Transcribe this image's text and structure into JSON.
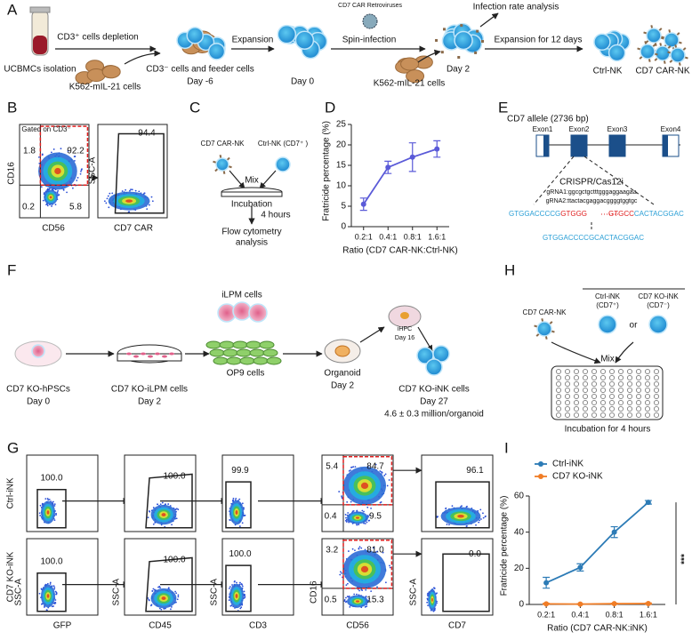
{
  "panel_labels": [
    "A",
    "B",
    "C",
    "D",
    "E",
    "F",
    "G",
    "H",
    "I"
  ],
  "A": {
    "texts": [
      "UCBMCs isolation",
      "CD3⁺ cells depletion",
      "K562-mIL-21 cells",
      "CD3⁻ cells and feeder cells",
      "Day -6",
      "Expansion",
      "Day 0",
      "CD7 CAR Retroviruses",
      "Spin-infection",
      "Infection rate analysis",
      "Day 2",
      "K562-mIL-21 cells",
      "Expansion for 12 days",
      "Ctrl-NK",
      "CD7 CAR-NK"
    ]
  },
  "B": {
    "texts": [
      "Gated on CD3⁻",
      "1.8",
      "92.2",
      "0.2",
      "5.8",
      "94.4",
      "CD16",
      "CD56",
      "SSC-A",
      "CD7 CAR"
    ]
  },
  "C": {
    "texts": [
      "CD7 CAR-NK",
      "Ctrl-NK (CD7⁺ )",
      "Mix",
      "Incubation",
      "4 hours",
      "Flow cytometry",
      "analysis"
    ]
  },
  "E": {
    "texts": [
      "CD7 allele (2736 bp)",
      "Exon1",
      "Exon2",
      "Exon3",
      "Exon4",
      "CRISPR/Cas12i",
      "gRNA1:ggcgctgctttgggaggaagaa",
      "gRNA2:ttactacgaggacggggtggtgc",
      "GTGGACCCCGCACTACGGAC"
    ],
    "sequence": [
      "GTGGACCCCG",
      "GTGGG",
      "GTGCC",
      "CACTACGGAC"
    ]
  },
  "F": {
    "texts": [
      "CD7 KO-hPSCs",
      "Day 0",
      "CD7 KO-iLPM cells",
      "Day 2",
      "iLPM cells",
      "OP9 cells",
      "Organoid",
      "Day 2",
      "iHPC",
      "Day 16",
      "CD7 KO-iNK cells",
      "Day 27",
      "4.6 ± 0.3 million/organoid"
    ]
  },
  "G": {
    "rows": [
      {
        "label": "Ctrl-iNK",
        "gates": [
          [
            "100.0"
          ],
          [
            "100.0"
          ],
          [
            "99.9"
          ],
          [
            "5.4",
            "84.7",
            "0.4",
            "9.5"
          ],
          [
            "96.1"
          ]
        ]
      },
      {
        "label": "CD7 KO-iNK",
        "gates": [
          [
            "100.0"
          ],
          [
            "100.0"
          ],
          [
            "100.0"
          ],
          [
            "3.2",
            "81.0",
            "0.5",
            "15.3"
          ],
          [
            "0.0"
          ]
        ]
      }
    ],
    "x_labels": [
      "GFP",
      "CD45",
      "CD3",
      "CD56",
      "CD7"
    ],
    "y_labels": [
      "SSC-A",
      "SSC-A",
      "SSC-A",
      "CD16",
      "SSC-A"
    ]
  },
  "H": {
    "texts": [
      "CD7 CAR-NK",
      "Ctrl-iNK",
      "(CD7⁺)",
      "or",
      "CD7 KO-iNK",
      "(CD7⁻)",
      "Mix",
      "Incubation for 4 hours"
    ]
  },
  "chart_data": [
    {
      "type": "line",
      "y_label": "Fratricide percentage (%)",
      "x_label": "Ratio (CD7 CAR-NK:Ctrl-NK)",
      "categories": [
        "0.2:1",
        "0.4:1",
        "0.8:1",
        "1.6:1"
      ],
      "values": [
        5.5,
        14.5,
        17,
        19
      ],
      "errors": [
        1.5,
        1.5,
        3.5,
        2
      ],
      "color": "#5a5ad8",
      "ylim": [
        0,
        25
      ],
      "yticks": [
        0,
        5,
        10,
        15,
        20,
        25
      ]
    },
    {
      "type": "line",
      "y_label": "Fratricide percentage (%)",
      "x_label": "Ratio (CD7 CAR-NK:iNK)",
      "categories": [
        "0.2:1",
        "0.4:1",
        "0.8:1",
        "1.6:1"
      ],
      "series": [
        {
          "name": "Ctrl-iNK",
          "color": "#2c7bb6",
          "values": [
            12,
            20.5,
            40,
            56.5
          ],
          "errors": [
            3,
            2,
            3,
            1
          ]
        },
        {
          "name": "CD7 KO-iNK",
          "color": "#f07d26",
          "values": [
            0.3,
            0.2,
            0.4,
            0.5
          ],
          "errors": [
            0.3,
            0.2,
            0.3,
            0.3
          ]
        }
      ],
      "ylim": [
        0,
        60
      ],
      "yticks": [
        0,
        20,
        40,
        60
      ],
      "legend": "upper left",
      "annotation": "***"
    }
  ]
}
